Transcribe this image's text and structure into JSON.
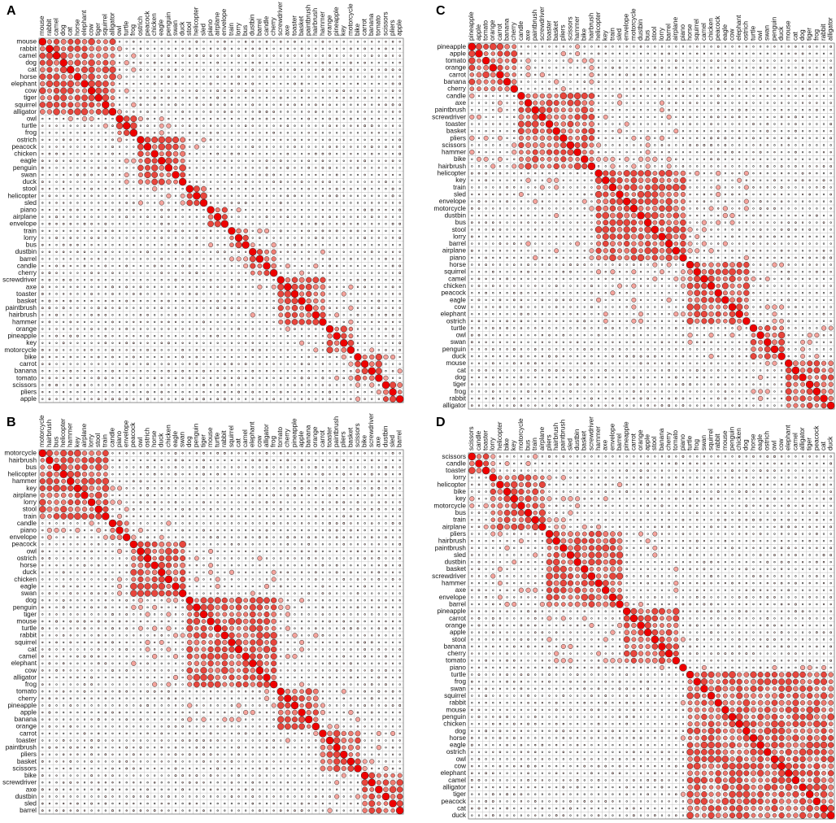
{
  "chart_data": [
    {
      "panel": "A",
      "type": "heatmap",
      "labels": [
        "mouse",
        "rabbit",
        "camel",
        "dog",
        "cat",
        "horse",
        "elephant",
        "cow",
        "tiger",
        "squirrel",
        "alligator",
        "owl",
        "turtle",
        "frog",
        "ostrich",
        "peacock",
        "chicken",
        "eagle",
        "penguin",
        "swan",
        "duck",
        "stool",
        "helicopter",
        "sled",
        "piano",
        "airplane",
        "envelope",
        "train",
        "lorry",
        "bus",
        "dustbin",
        "barrel",
        "candle",
        "cherry",
        "screwdriver",
        "axe",
        "toaster",
        "basket",
        "paintbrush",
        "hairbrush",
        "hammer",
        "orange",
        "pineapple",
        "key",
        "motorcycle",
        "bike",
        "carrot",
        "banana",
        "tomato",
        "scissors",
        "pliers",
        "apple"
      ],
      "blocks": [
        [
          0,
          10
        ],
        [
          11,
          13
        ],
        [
          14,
          20
        ],
        [
          21,
          23
        ],
        [
          24,
          26
        ],
        [
          27,
          29
        ],
        [
          30,
          33
        ],
        [
          34,
          40
        ],
        [
          41,
          44
        ],
        [
          45,
          48
        ],
        [
          49,
          51
        ]
      ],
      "value_range": [
        0,
        1
      ]
    },
    {
      "panel": "B",
      "type": "heatmap",
      "labels": [
        "motorcycle",
        "hairbrush",
        "bus",
        "helicopter",
        "hammer",
        "key",
        "airplane",
        "lorry",
        "stool",
        "train",
        "candle",
        "piano",
        "envelope",
        "peacock",
        "owl",
        "ostrich",
        "horse",
        "duck",
        "chicken",
        "eagle",
        "swan",
        "dog",
        "penguin",
        "tiger",
        "mouse",
        "turtle",
        "rabbit",
        "squirrel",
        "cat",
        "camel",
        "elephant",
        "cow",
        "alligator",
        "frog",
        "tomato",
        "cherry",
        "pineapple",
        "apple",
        "banana",
        "orange",
        "carrot",
        "toaster",
        "paintbrush",
        "pliers",
        "basket",
        "scissors",
        "bike",
        "screwdriver",
        "axe",
        "dustbin",
        "sled",
        "barrel"
      ],
      "blocks": [
        [
          0,
          9
        ],
        [
          10,
          12
        ],
        [
          13,
          20
        ],
        [
          21,
          33
        ],
        [
          34,
          39
        ],
        [
          40,
          45
        ],
        [
          46,
          51
        ]
      ],
      "value_range": [
        0,
        1
      ]
    },
    {
      "panel": "C",
      "type": "heatmap",
      "labels": [
        "pineapple",
        "apple",
        "tomato",
        "orange",
        "carrot",
        "banana",
        "cherry",
        "candle",
        "axe",
        "paintbrush",
        "screwdriver",
        "toaster",
        "basket",
        "pliers",
        "scissors",
        "hammer",
        "bike",
        "hairbrush",
        "helicopter",
        "key",
        "train",
        "sled",
        "envelope",
        "motorcycle",
        "dustbin",
        "bus",
        "stool",
        "lorry",
        "barrel",
        "airplane",
        "piano",
        "horse",
        "squirrel",
        "camel",
        "chicken",
        "peacock",
        "eagle",
        "cow",
        "elephant",
        "ostrich",
        "turtle",
        "owl",
        "swan",
        "penguin",
        "duck",
        "mouse",
        "cat",
        "dog",
        "tiger",
        "frog",
        "rabbit",
        "alligator"
      ],
      "blocks": [
        [
          0,
          6
        ],
        [
          7,
          17
        ],
        [
          18,
          30
        ],
        [
          31,
          39
        ],
        [
          40,
          44
        ],
        [
          45,
          51
        ]
      ],
      "value_range": [
        0,
        1
      ]
    },
    {
      "panel": "D",
      "type": "heatmap",
      "labels": [
        "scissors",
        "candle",
        "toaster",
        "lorry",
        "helicopter",
        "bike",
        "key",
        "motorcycle",
        "bus",
        "train",
        "airplane",
        "pliers",
        "hairbrush",
        "paintbrush",
        "sled",
        "dustbin",
        "basket",
        "screwdriver",
        "hammer",
        "axe",
        "envelope",
        "barrel",
        "pineapple",
        "carrot",
        "orange",
        "apple",
        "stool",
        "banana",
        "cherry",
        "tomato",
        "piano",
        "turtle",
        "frog",
        "swan",
        "squirrel",
        "rabbit",
        "mouse",
        "penguin",
        "chicken",
        "dog",
        "horse",
        "eagle",
        "ostrich",
        "owl",
        "cow",
        "elephant",
        "camel",
        "alligator",
        "tiger",
        "peacock",
        "cat",
        "duck"
      ],
      "blocks": [
        [
          0,
          2
        ],
        [
          3,
          10
        ],
        [
          11,
          21
        ],
        [
          22,
          29
        ],
        [
          30,
          30
        ],
        [
          31,
          51
        ]
      ],
      "value_range": [
        0,
        1
      ]
    }
  ]
}
